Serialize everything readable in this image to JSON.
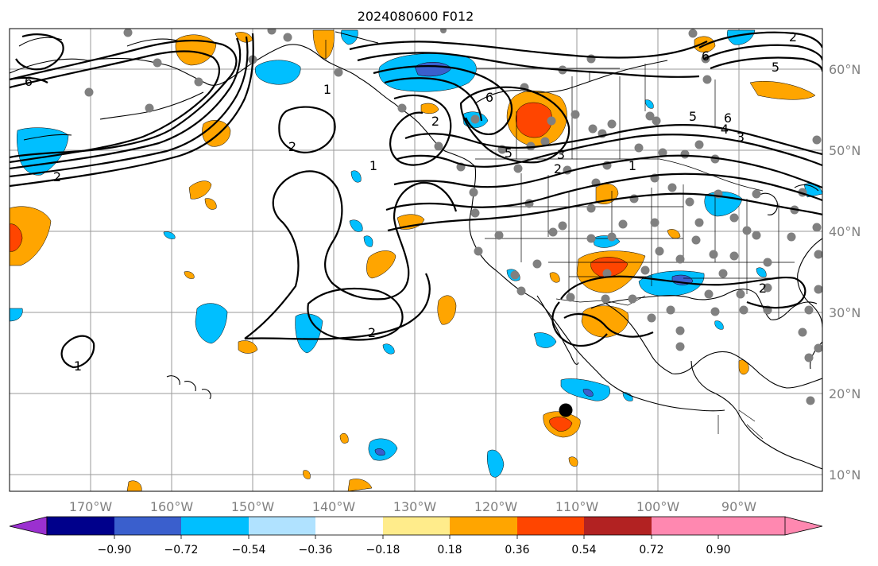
{
  "title": "2024080600 F012",
  "lon_labels": [
    "170°W",
    "160°W",
    "150°W",
    "140°W",
    "130°W",
    "120°W",
    "110°W",
    "100°W",
    "90°W"
  ],
  "lat_labels": [
    "60°N",
    "50°N",
    "40°N",
    "30°N",
    "20°N",
    "10°N"
  ],
  "colorbar": {
    "tick_labels": [
      "−0.90",
      "−0.72",
      "−0.54",
      "−0.36",
      "−0.18",
      "0.18",
      "0.36",
      "0.54",
      "0.72",
      "0.90"
    ],
    "colors": [
      "#9b30d0",
      "#00008b",
      "#3a5fcd",
      "#00bfff",
      "#b0e2ff",
      "#ffffff",
      "#ffec8b",
      "#ffa500",
      "#ff4500",
      "#b22222",
      "#ff88b0"
    ]
  },
  "contour_labels": [
    "6",
    "2",
    "1",
    "2",
    "1",
    "2",
    "2",
    "1",
    "6",
    "6",
    "5",
    "3",
    "2",
    "1",
    "5",
    "6",
    "4",
    "3",
    "5",
    "2",
    "2"
  ],
  "fill_colors": {
    "pos_light": "#ffa500",
    "pos_strong": "#ff4500",
    "neg_light": "#00bfff",
    "neg_strong": "#3a5fcd",
    "station": "#808080",
    "storm": "#000000"
  }
}
